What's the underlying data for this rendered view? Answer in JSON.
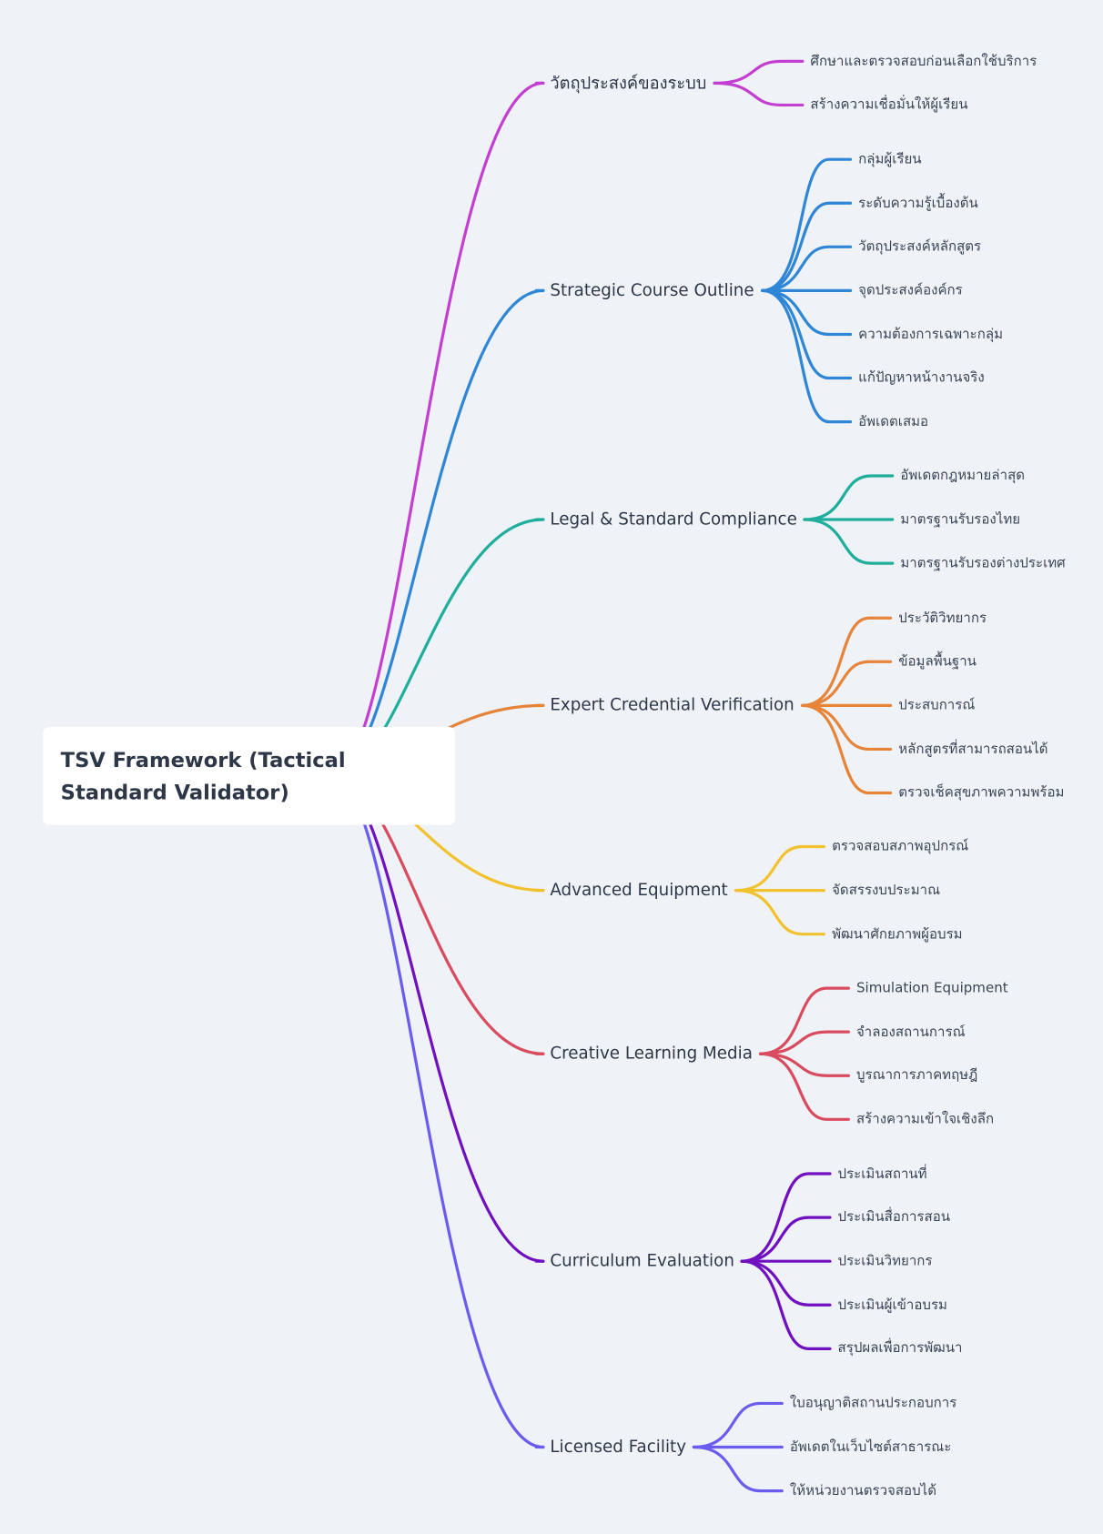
{
  "root": {
    "title": "TSV Framework (Tactical Standard Validator)"
  },
  "branches": [
    {
      "label": "วัตถุประสงค์ของระบบ",
      "color": "#c23fd1",
      "leaves": [
        "ศึกษาและตรวจสอบก่อนเลือกใช้บริการ",
        "สร้างความเชื่อมั่นให้ผู้เรียน"
      ]
    },
    {
      "label": "Strategic Course Outline",
      "color": "#2f86d6",
      "leaves": [
        "กลุ่มผู้เรียน",
        "ระดับความรู้เบื้องต้น",
        "วัตถุประสงค์หลักสูตร",
        "จุดประสงค์องค์กร",
        "ความต้องการเฉพาะกลุ่ม",
        "แก้ปัญหาหน้างานจริง",
        "อัพเดตเสมอ"
      ]
    },
    {
      "label": "Legal & Standard Compliance",
      "color": "#1fae9c",
      "leaves": [
        "อัพเดตกฎหมายล่าสุด",
        "มาตรฐานรับรองไทย",
        "มาตรฐานรับรองต่างประเทศ"
      ]
    },
    {
      "label": "Expert Credential Verification",
      "color": "#e6843a",
      "leaves": [
        "ประวัติวิทยากร",
        "ข้อมูลพื้นฐาน",
        "ประสบการณ์",
        "หลักสูตรที่สามารถสอนได้",
        "ตรวจเช็คสุขภาพความพร้อม"
      ]
    },
    {
      "label": "Advanced Equipment",
      "color": "#f2c12e",
      "leaves": [
        "ตรวจสอบสภาพอุปกรณ์",
        "จัดสรรงบประมาณ",
        "พัฒนาศักยภาพผู้อบรม"
      ]
    },
    {
      "label": "Creative Learning Media",
      "color": "#d94b5e",
      "leaves": [
        "Simulation Equipment",
        "จำลองสถานการณ์",
        "บูรณาการภาคทฤษฎี",
        "สร้างความเข้าใจเชิงลึก"
      ]
    },
    {
      "label": "Curriculum Evaluation",
      "color": "#7010c0",
      "leaves": [
        "ประเมินสถานที่",
        "ประเมินสื่อการสอน",
        "ประเมินวิทยากร",
        "ประเมินผู้เข้าอบรม",
        "สรุปผลเพื่อการพัฒนา"
      ]
    },
    {
      "label": "Licensed Facility",
      "color": "#6b5cf0",
      "leaves": [
        "ใบอนุญาติสถานประกอบการ",
        "อัพเดตในเว็บไซต์สาธารณะ",
        "ให้หน่วยงานตรวจสอบได้"
      ]
    }
  ]
}
